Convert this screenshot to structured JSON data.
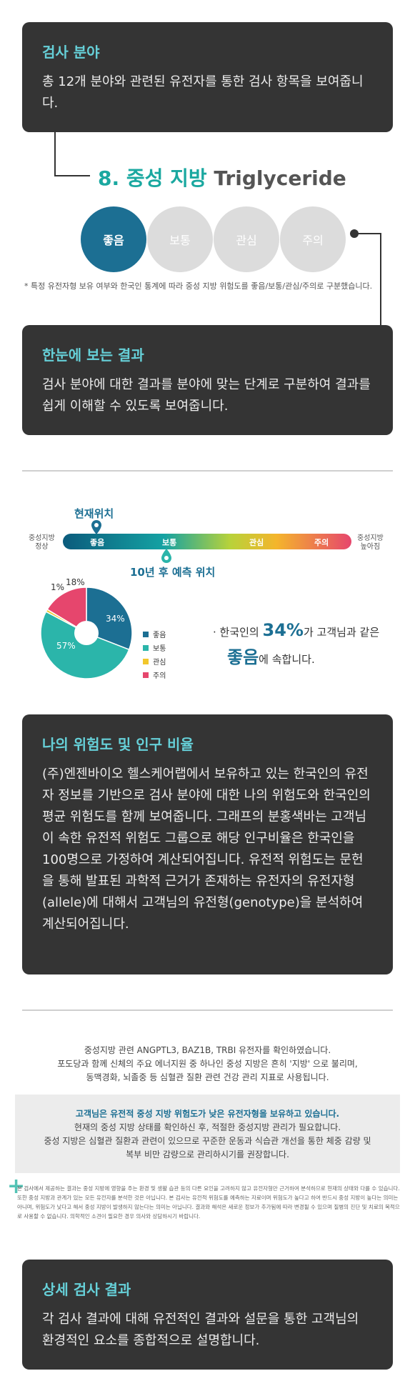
{
  "cards": {
    "card1": {
      "title": "검사 분야",
      "body": "총 12개 분야와 관련된 유전자를 통한 검사 항목을 보여줍니다."
    },
    "card2": {
      "title": "한눈에 보는 결과",
      "body": "검사 분야에 대한 결과를 분야에 맞는 단계로 구분하여 결과를 쉽게 이해할 수 있도록 보여줍니다."
    },
    "card3": {
      "title": "나의 위험도 및 인구 비율",
      "body": "(주)엔젠바이오 헬스케어랩에서 보유하고 있는 한국인의 유전자 정보를 기반으로 검사 분야에 대한 나의 위험도와 한국인의 평균 위험도를 함께 보여줍니다. 그래프의 분홍색바는 고객님이 속한 유전적 위험도 그룹으로 해당 인구비율은 한국인을 100명으로 가정하여 계산되어집니다. 유전적 위험도는 문헌을 통해 발표된 과학적 근거가 존재하는 유전자의 유전자형(allele)에 대해서 고객님의 유전형(genotype)을 분석하여 계산되어집니다."
    },
    "card4": {
      "title": "상세 검사 결과",
      "body": "각 검사 결과에 대해 유전적인 결과와 설문을 통한 고객님의 환경적인 요소를 종합적으로 설명합니다."
    }
  },
  "risk_panel": {
    "title_kr": "8. 중성 지방",
    "title_en": "Triglyceride",
    "levels": [
      {
        "label": "좋음",
        "active": true,
        "color": "#1c6f93"
      },
      {
        "label": "보통",
        "active": false,
        "color": "#dcdcdc"
      },
      {
        "label": "관심",
        "active": false,
        "color": "#dcdcdc"
      },
      {
        "label": "주의",
        "active": false,
        "color": "#dcdcdc"
      }
    ],
    "note": "* 특정 유전자형 보유 여부와 한국인 통계에 따라 중성 지방 위험도를 좋음/보통/관심/주의로 구분했습니다."
  },
  "gauge": {
    "current_label": "현재위치",
    "future_label": "10년 후 예측 위치",
    "left_label_1": "중성지방",
    "left_label_2": "정상",
    "right_label_1": "중성지방",
    "right_label_2": "높아짐",
    "segments": [
      "좋음",
      "보통",
      "관심",
      "주의"
    ],
    "current_position": 0.12,
    "future_position": 0.37
  },
  "chart_data": {
    "type": "pie",
    "categories": [
      "좋음",
      "보통",
      "관심",
      "주의"
    ],
    "values": [
      34,
      57,
      1,
      18
    ],
    "labels": [
      "34%",
      "57%",
      "1%",
      "18%"
    ],
    "colors": [
      "#1c6f93",
      "#2bb5aa",
      "#f2c72c",
      "#e6466d"
    ],
    "legend_position": "right"
  },
  "stat": {
    "prefix": "· 한국인의",
    "value": "34%",
    "suffix": "가 고객님과 같은",
    "level": "좋음",
    "tail": "에 속합니다."
  },
  "detail": {
    "lines": [
      "중성지방 관련 ANGPTL3, BAZ1B, TRBI 유전자를 확인하였습니다.",
      "포도당과 함께 신체의 주요 에너지원 중 하나인 중성 지방은 흔히 '지방' 으로 불리며,",
      "동맥경화, 뇌졸중 등 심혈관 질환 관련 건강 관리 지표로 사용됩니다."
    ],
    "box_highlight": "고객님은 유전적 중성 지방 위험도가 낮은 유전자형을 보유하고 있습니다.",
    "box_lines": [
      "현재의 중성 지방 상태를 확인하신 후, 적절한 중성지방 관리가 필요합니다.",
      "중성 지방은 심혈관 질환과 관련이 있으므로 꾸준한 운동과 식습관 개선을 통한 체중 감량 및",
      "복부 비만 감량으로 관리하시기를 권장합니다."
    ],
    "disclaimer": "본 검사에서 제공하는 결과는 중성 지방에 영향을 주는 환경 및 생활 습관 등의 다른 요인을 고려하지 않고 유전자형만 근거하여 분석하므로 현재의 상태와 다를 수 있습니다. 또한 중성 지방과 관계가 있는 모든 유전자를 분석한 것은 아닙니다. 본 검사는 유전적 위험도를 예측하는 자료이며 위험도가 높다고 하여 반드시 중성 지방이 높다는 의미는 아니며, 위험도가 낮다고 해서 중성 지방이 발생하지 않는다는 의미는 아닙니다. 결과와 해석은 새로운 정보가 추가됨에 따라 변경될 수 있으며 질병의 진단 및 치료의 목적으로 사용할 수 없습니다. 의학적인 소견이 필요한 경우 의사와 상담하시기 바랍니다."
  }
}
